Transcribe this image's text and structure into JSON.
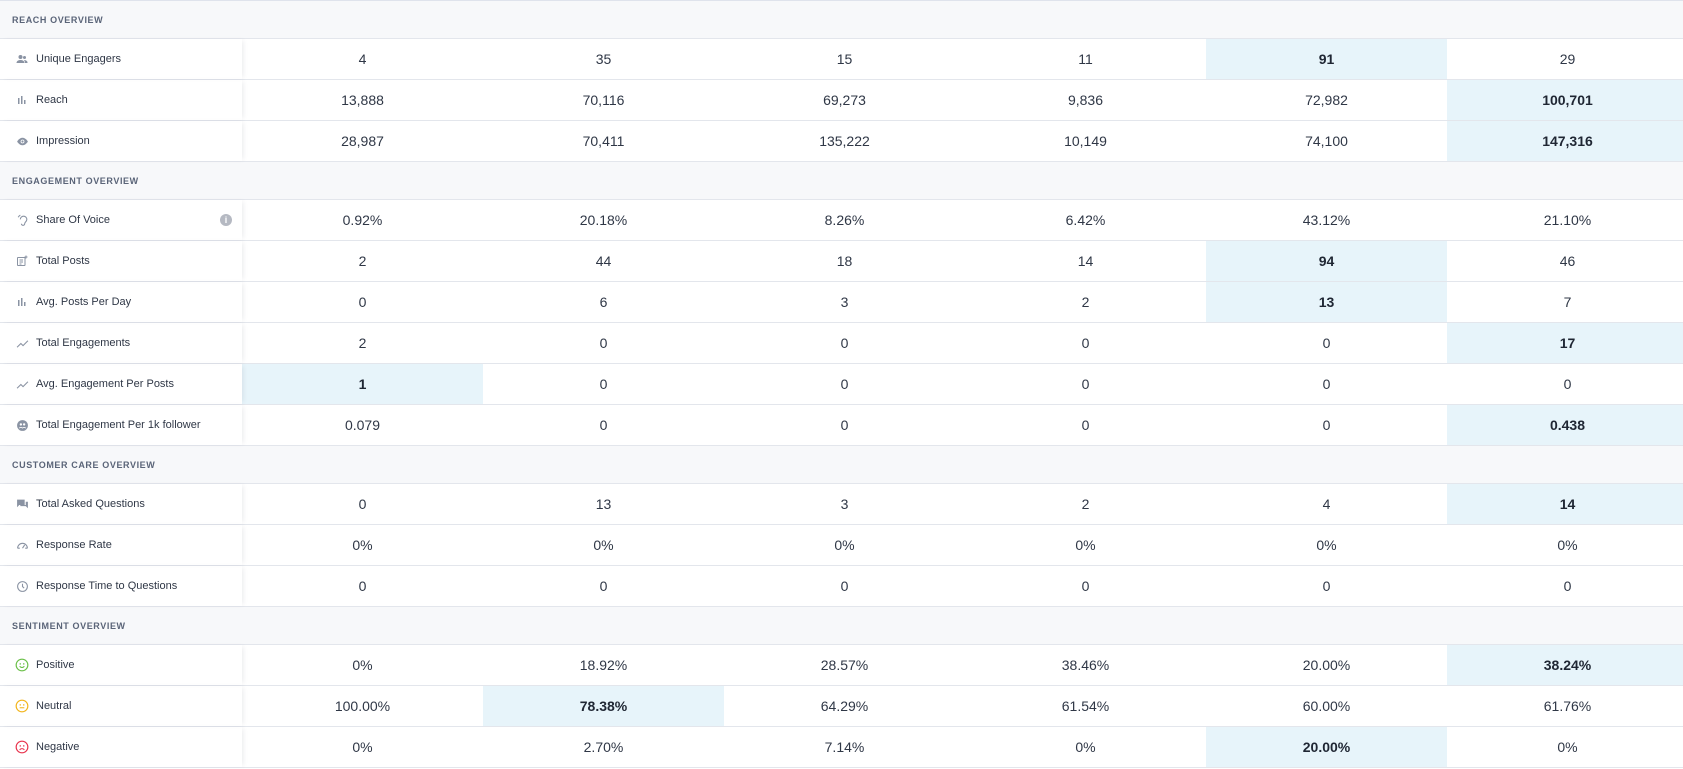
{
  "sections": [
    {
      "title": "REACH OVERVIEW",
      "rows": [
        {
          "label": "Unique Engagers",
          "icon": "people-icon",
          "values": [
            "4",
            "35",
            "15",
            "11",
            "91",
            "29"
          ],
          "highlight": 4
        },
        {
          "label": "Reach",
          "icon": "bar-chart-icon",
          "values": [
            "13,888",
            "70,116",
            "69,273",
            "9,836",
            "72,982",
            "100,701"
          ],
          "highlight": 5
        },
        {
          "label": "Impression",
          "icon": "eye-icon",
          "values": [
            "28,987",
            "70,411",
            "135,222",
            "10,149",
            "74,100",
            "147,316"
          ],
          "highlight": 5
        }
      ]
    },
    {
      "title": "ENGAGEMENT OVERVIEW",
      "rows": [
        {
          "label": "Share Of Voice",
          "icon": "ear-icon",
          "info": "i",
          "values": [
            "0.92%",
            "20.18%",
            "8.26%",
            "6.42%",
            "43.12%",
            "21.10%"
          ],
          "highlight": null
        },
        {
          "label": "Total Posts",
          "icon": "post-add-icon",
          "values": [
            "2",
            "44",
            "18",
            "14",
            "94",
            "46"
          ],
          "highlight": 4
        },
        {
          "label": "Avg. Posts Per Day",
          "icon": "bar-chart-icon",
          "values": [
            "0",
            "6",
            "3",
            "2",
            "13",
            "7"
          ],
          "highlight": 4
        },
        {
          "label": "Total Engagements",
          "icon": "trend-icon",
          "values": [
            "2",
            "0",
            "0",
            "0",
            "0",
            "17"
          ],
          "highlight": 5
        },
        {
          "label": "Avg. Engagement Per Posts",
          "icon": "trend-icon",
          "values": [
            "1",
            "0",
            "0",
            "0",
            "0",
            "0"
          ],
          "highlight": 0
        },
        {
          "label": "Total Engagement Per 1k follower",
          "icon": "group-circle-icon",
          "values": [
            "0.079",
            "0",
            "0",
            "0",
            "0",
            "0.438"
          ],
          "highlight": 5
        }
      ]
    },
    {
      "title": "CUSTOMER CARE OVERVIEW",
      "rows": [
        {
          "label": "Total Asked Questions",
          "icon": "chat-icon",
          "values": [
            "0",
            "13",
            "3",
            "2",
            "4",
            "14"
          ],
          "highlight": 5
        },
        {
          "label": "Response Rate",
          "icon": "speedometer-icon",
          "values": [
            "0%",
            "0%",
            "0%",
            "0%",
            "0%",
            "0%"
          ],
          "highlight": null
        },
        {
          "label": "Response Time to Questions",
          "icon": "clock-icon",
          "values": [
            "0",
            "0",
            "0",
            "0",
            "0",
            "0"
          ],
          "highlight": null
        }
      ]
    },
    {
      "title": "SENTIMENT OVERVIEW",
      "rows": [
        {
          "label": "Positive",
          "icon": "smile-icon",
          "values": [
            "0%",
            "18.92%",
            "28.57%",
            "38.46%",
            "20.00%",
            "38.24%"
          ],
          "highlight": 5
        },
        {
          "label": "Neutral",
          "icon": "neutral-face-icon",
          "values": [
            "100.00%",
            "78.38%",
            "64.29%",
            "61.54%",
            "60.00%",
            "61.76%"
          ],
          "highlight": 1
        },
        {
          "label": "Negative",
          "icon": "sad-face-icon",
          "values": [
            "0%",
            "2.70%",
            "7.14%",
            "0%",
            "20.00%",
            "0%"
          ],
          "highlight": 4
        }
      ]
    }
  ],
  "colors": {
    "highlight_bg": "#e7f4fa",
    "icon_gray": "#8a93a3",
    "positive": "#6cc04a",
    "neutral": "#f2b51d",
    "negative": "#e8344e"
  }
}
